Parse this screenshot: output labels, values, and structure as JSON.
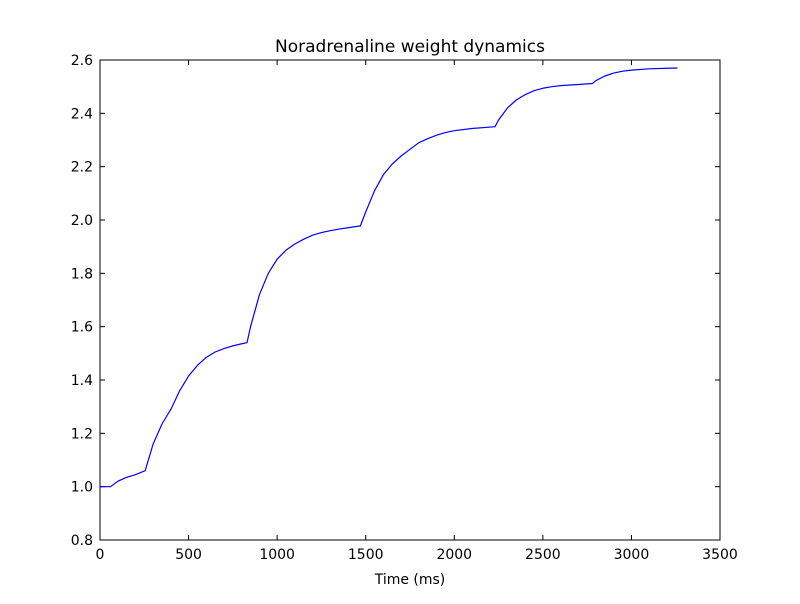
{
  "chart_data": {
    "type": "line",
    "title": "Noradrenaline weight dynamics",
    "xlabel": "Time (ms)",
    "ylabel": "",
    "xlim": [
      0,
      3500
    ],
    "ylim": [
      0.8,
      2.6
    ],
    "x_ticks": [
      0,
      500,
      1000,
      1500,
      2000,
      2500,
      3000,
      3500
    ],
    "y_ticks": [
      0.8,
      1.0,
      1.2,
      1.4,
      1.6,
      1.8,
      2.0,
      2.2,
      2.4,
      2.6
    ],
    "x_tick_labels": [
      "0",
      "500",
      "1000",
      "1500",
      "2000",
      "2500",
      "3000",
      "3500"
    ],
    "y_tick_labels": [
      "0.8",
      "1.0",
      "1.2",
      "1.4",
      "1.6",
      "1.8",
      "2.0",
      "2.2",
      "2.4",
      "2.6"
    ],
    "grid": false,
    "series": [
      {
        "color": "#0000ff",
        "x": [
          0,
          60,
          100,
          150,
          200,
          255,
          300,
          350,
          400,
          450,
          500,
          550,
          600,
          650,
          700,
          750,
          800,
          830,
          850,
          900,
          950,
          1000,
          1050,
          1100,
          1150,
          1200,
          1250,
          1300,
          1350,
          1400,
          1470,
          1500,
          1550,
          1600,
          1650,
          1700,
          1750,
          1800,
          1850,
          1900,
          1950,
          2000,
          2100,
          2230,
          2250,
          2300,
          2350,
          2400,
          2450,
          2500,
          2550,
          2600,
          2700,
          2780,
          2800,
          2850,
          2900,
          2950,
          3000,
          3100,
          3200,
          3260
        ],
        "y": [
          1.0,
          1.0,
          1.02,
          1.035,
          1.045,
          1.06,
          1.16,
          1.235,
          1.29,
          1.36,
          1.415,
          1.455,
          1.485,
          1.505,
          1.518,
          1.528,
          1.536,
          1.54,
          1.6,
          1.72,
          1.8,
          1.853,
          1.887,
          1.91,
          1.928,
          1.943,
          1.953,
          1.96,
          1.966,
          1.971,
          1.978,
          2.03,
          2.11,
          2.17,
          2.21,
          2.24,
          2.265,
          2.29,
          2.305,
          2.318,
          2.328,
          2.335,
          2.343,
          2.35,
          2.375,
          2.42,
          2.45,
          2.47,
          2.485,
          2.494,
          2.5,
          2.504,
          2.508,
          2.512,
          2.523,
          2.54,
          2.551,
          2.558,
          2.562,
          2.567,
          2.569,
          2.57
        ]
      }
    ]
  }
}
